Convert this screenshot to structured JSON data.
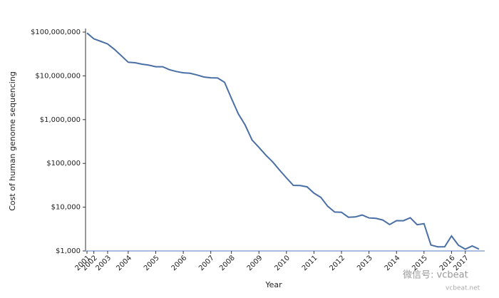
{
  "chart_data": {
    "type": "line",
    "xlabel": "Year",
    "ylabel": "Cost of human genome sequencing",
    "categories": [
      "2001",
      "2002",
      null,
      "2003",
      null,
      null,
      "2004",
      null,
      null,
      null,
      "2005",
      null,
      null,
      null,
      "2006",
      null,
      null,
      null,
      "2007",
      null,
      null,
      "2008",
      null,
      null,
      null,
      "2009",
      null,
      null,
      null,
      "2010",
      null,
      null,
      null,
      "2011",
      null,
      null,
      null,
      "2012",
      null,
      null,
      null,
      "2013",
      null,
      null,
      null,
      "2014",
      null,
      null,
      null,
      "2015",
      null,
      null,
      null,
      "2016",
      null,
      "2017",
      null,
      null
    ],
    "series": [
      {
        "name": "Cost",
        "color": "#4a6fa5",
        "values": [
          95263072,
          70175437,
          61448422,
          53751684,
          40157554,
          28780376,
          20442576,
          19934346,
          18519312,
          17534970,
          16159699,
          16180224,
          13801124,
          12585659,
          11732535,
          11455315,
          10474556,
          9408739,
          9047003,
          8927342,
          7147571,
          3063820,
          1352982,
          752080,
          342502,
          232735,
          154714,
          108065,
          70333,
          46774,
          31512,
          31125,
          29092,
          20963,
          16712,
          10497,
          7743,
          7666,
          5901,
          5985,
          6618,
          5671,
          5550,
          5096,
          4008,
          4920,
          4905,
          5731,
          3970,
          4211,
          1363,
          1245,
          1246,
          2200,
          1350,
          1100,
          1300,
          1100
        ]
      }
    ],
    "log_scale": true,
    "ylim": [
      1000,
      100000000
    ],
    "yticks": [
      {
        "value": 1000,
        "label": "$1,000"
      },
      {
        "value": 10000,
        "label": "$10,000"
      },
      {
        "value": 100000,
        "label": "$100,000"
      },
      {
        "value": 1000000,
        "label": "$1,000,000"
      },
      {
        "value": 10000000,
        "label": "$10,000,000"
      },
      {
        "value": 100000000,
        "label": "$100,000,000"
      }
    ],
    "watermark": "微信号: vcbeat",
    "watermark_sub": "vcbeat.net"
  }
}
